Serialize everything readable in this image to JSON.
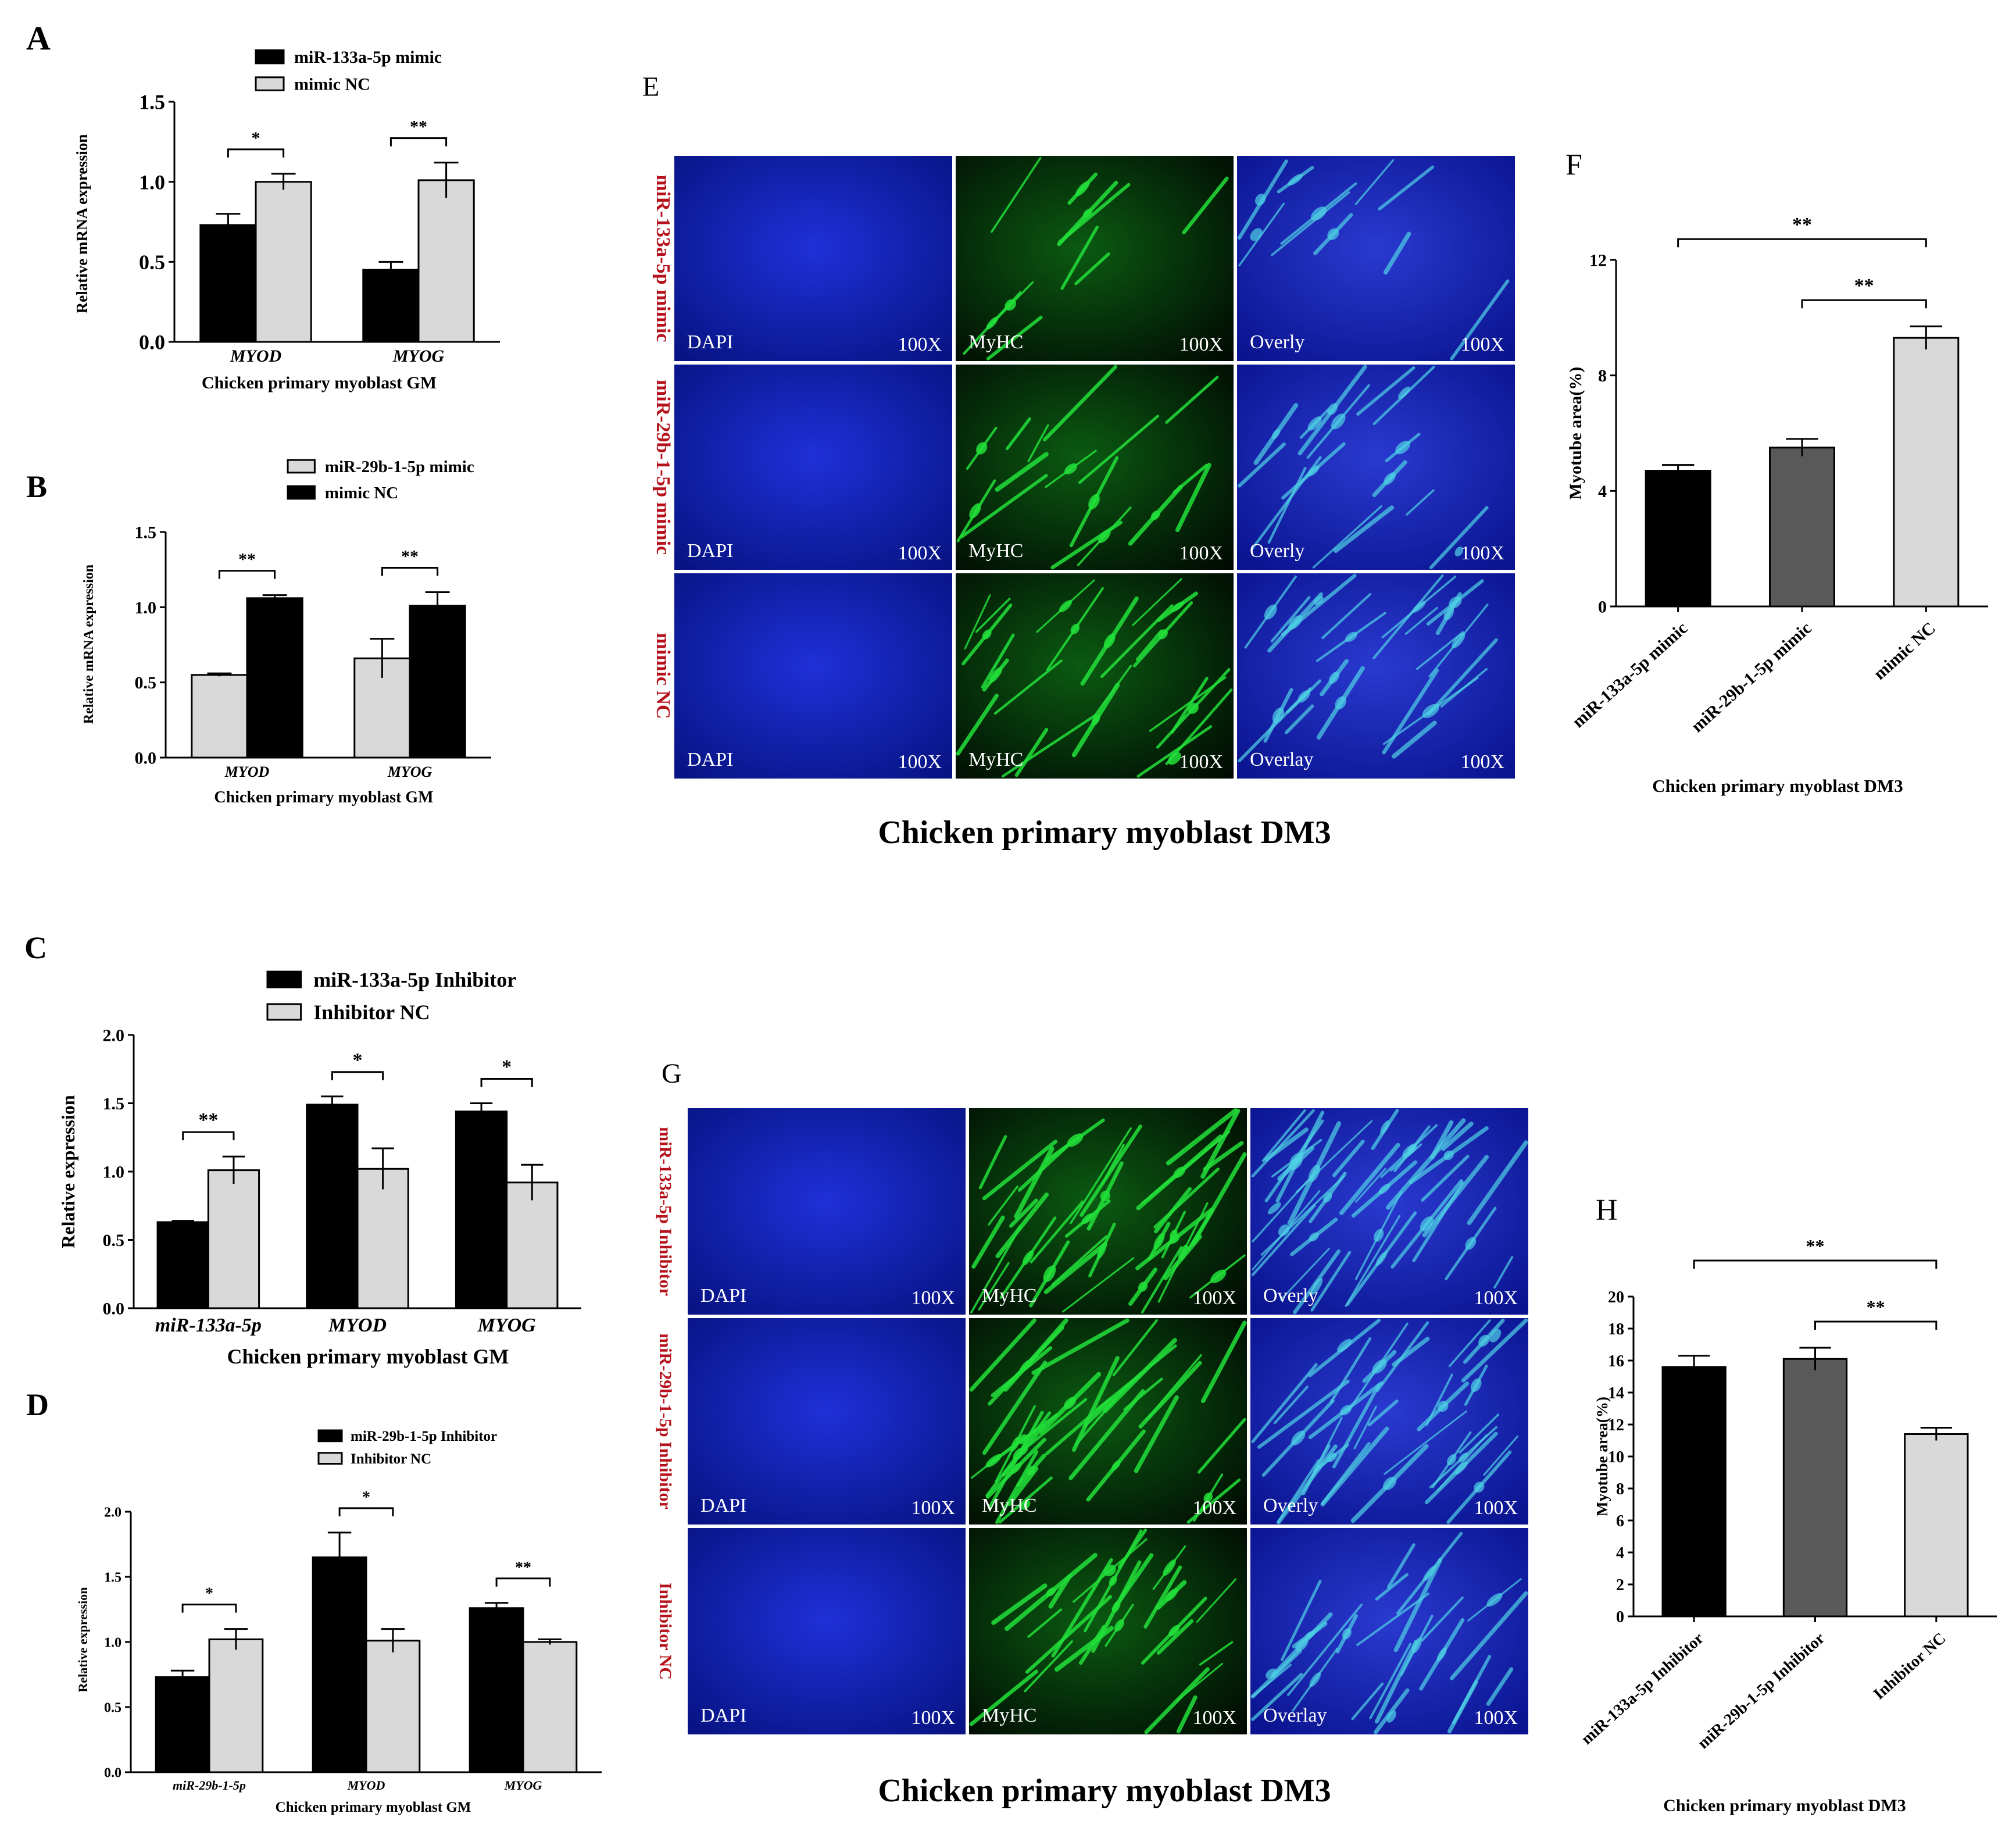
{
  "colors": {
    "black": "#000000",
    "light": "#d9d9d9",
    "dark": "#595959",
    "red_label": "#b5121b",
    "dapi": "#0b1aa8",
    "myhc": "#0f9a20"
  },
  "chart_data": [
    {
      "id": "A",
      "panel_label": "A",
      "type": "bar",
      "categories": [
        "MYOD",
        "MYOG"
      ],
      "series": [
        {
          "name": "miR-133a-5p mimic",
          "color": "#000000",
          "values": [
            0.73,
            0.45
          ],
          "errors": [
            0.07,
            0.05
          ]
        },
        {
          "name": "mimic NC",
          "color": "#d9d9d9",
          "values": [
            1.0,
            1.01
          ],
          "errors": [
            0.05,
            0.11
          ]
        }
      ],
      "sig": [
        "*",
        "**"
      ],
      "ylim": [
        0,
        1.5
      ],
      "yticks": [
        "0.0",
        "0.5",
        "1.0",
        "1.5"
      ],
      "ylabel": "Relative mRNA expression",
      "xlabel": "Chicken primary myoblast GM"
    },
    {
      "id": "B",
      "panel_label": "B",
      "type": "bar",
      "categories": [
        "MYOD",
        "MYOG"
      ],
      "series": [
        {
          "name": "miR-29b-1-5p mimic",
          "color": "#d9d9d9",
          "values": [
            0.55,
            0.66
          ],
          "errors": [
            0.01,
            0.13
          ]
        },
        {
          "name": "mimic NC",
          "color": "#000000",
          "values": [
            1.06,
            1.01
          ],
          "errors": [
            0.02,
            0.09
          ]
        }
      ],
      "sig": [
        "**",
        "**"
      ],
      "ylim": [
        0,
        1.5
      ],
      "yticks": [
        "0.0",
        "0.5",
        "1.0",
        "1.5"
      ],
      "ylabel": "Relative mRNA expression",
      "xlabel": "Chicken primary myoblast GM"
    },
    {
      "id": "C",
      "panel_label": "C",
      "type": "bar",
      "categories": [
        "miR-133a-5p",
        "MYOD",
        "MYOG"
      ],
      "series": [
        {
          "name": "miR-133a-5p Inhibitor",
          "color": "#000000",
          "values": [
            0.63,
            1.49,
            1.44
          ],
          "errors": [
            0.01,
            0.06,
            0.06
          ]
        },
        {
          "name": "Inhibitor NC",
          "color": "#d9d9d9",
          "values": [
            1.01,
            1.02,
            0.92
          ],
          "errors": [
            0.1,
            0.15,
            0.13
          ]
        }
      ],
      "sig": [
        "**",
        "*",
        "*"
      ],
      "ylim": [
        0,
        2.0
      ],
      "yticks": [
        "0.0",
        "0.5",
        "1.0",
        "1.5",
        "2.0"
      ],
      "ylabel": "Relative  expression",
      "xlabel": "Chicken primary myoblast GM"
    },
    {
      "id": "D",
      "panel_label": "D",
      "type": "bar",
      "categories": [
        "miR-29b-1-5p",
        "MYOD",
        "MYOG"
      ],
      "series": [
        {
          "name": "miR-29b-1-5p Inhibitor",
          "color": "#000000",
          "values": [
            0.73,
            1.65,
            1.26
          ],
          "errors": [
            0.05,
            0.19,
            0.04
          ]
        },
        {
          "name": "Inhibitor NC",
          "color": "#d9d9d9",
          "values": [
            1.02,
            1.01,
            1.0
          ],
          "errors": [
            0.08,
            0.09,
            0.02
          ]
        }
      ],
      "sig": [
        "*",
        "*",
        "**"
      ],
      "ylim": [
        0,
        2.0
      ],
      "yticks": [
        "0.0",
        "0.5",
        "1.0",
        "1.5",
        "2.0"
      ],
      "ylabel": "Relative expression",
      "xlabel": "Chicken primary myoblast GM"
    },
    {
      "id": "F",
      "panel_label": "F",
      "type": "bar",
      "categories": [
        "miR-133a-5p mimic",
        "miR-29b-1-5p mimic",
        "mimic NC"
      ],
      "colors": [
        "#000000",
        "#595959",
        "#d9d9d9"
      ],
      "values": [
        4.7,
        5.5,
        9.3
      ],
      "errors": [
        0.2,
        0.3,
        0.4
      ],
      "sig": [
        "**",
        "**"
      ],
      "ylim": [
        0,
        12
      ],
      "yticks": [
        "0",
        "4",
        "8",
        "12"
      ],
      "ylabel": "Myotube area(%)",
      "xlabel": "Chicken primary myoblast DM3"
    },
    {
      "id": "H",
      "panel_label": "H",
      "type": "bar",
      "categories": [
        "miR-133a-5p Inhibitor",
        "miR-29b-1-5p Inhibitor",
        "Inhibitor NC"
      ],
      "colors": [
        "#000000",
        "#595959",
        "#d9d9d9"
      ],
      "values": [
        15.6,
        16.1,
        11.4
      ],
      "errors": [
        0.7,
        0.7,
        0.4
      ],
      "sig": [
        "**",
        "**"
      ],
      "ylim": [
        0,
        20
      ],
      "yticks": [
        "0",
        "2",
        "4",
        "6",
        "8",
        "10",
        "12",
        "14",
        "16",
        "18",
        "20"
      ],
      "ylabel": "Myotube area(%)",
      "xlabel": "Chicken primary myoblast DM3"
    }
  ],
  "micrographs": {
    "E": {
      "panel_label": "E",
      "caption": "Chicken primary myoblast DM3",
      "row_labels": [
        "miR-133a-5p mimic",
        "miR-29b-1-5p mimic",
        "mimic NC"
      ],
      "rows": [
        [
          {
            "channel": "DAPI",
            "mag": "100X"
          },
          {
            "channel": "MyHC",
            "mag": "100X"
          },
          {
            "channel": "Overly",
            "mag": "100X"
          }
        ],
        [
          {
            "channel": "DAPI",
            "mag": "100X"
          },
          {
            "channel": "MyHC",
            "mag": "100X"
          },
          {
            "channel": "Overly",
            "mag": "100X"
          }
        ],
        [
          {
            "channel": "DAPI",
            "mag": "100X"
          },
          {
            "channel": "MyHC",
            "mag": "100X"
          },
          {
            "channel": "Overlay",
            "mag": "100X"
          }
        ]
      ]
    },
    "G": {
      "panel_label": "G",
      "caption": "Chicken primary myoblast DM3",
      "row_labels": [
        "miR-133a-5p Inhibitor",
        "miR-29b-1-5p Inhibitor",
        "Inhibitor NC"
      ],
      "rows": [
        [
          {
            "channel": "DAPI",
            "mag": "100X"
          },
          {
            "channel": "MyHC",
            "mag": "100X"
          },
          {
            "channel": "Overly",
            "mag": "100X"
          }
        ],
        [
          {
            "channel": "DAPI",
            "mag": "100X"
          },
          {
            "channel": "MyHC",
            "mag": "100X"
          },
          {
            "channel": "Overly",
            "mag": "100X"
          }
        ],
        [
          {
            "channel": "DAPI",
            "mag": "100X"
          },
          {
            "channel": "MyHC",
            "mag": "100X"
          },
          {
            "channel": "Overlay",
            "mag": "100X"
          }
        ]
      ]
    }
  }
}
